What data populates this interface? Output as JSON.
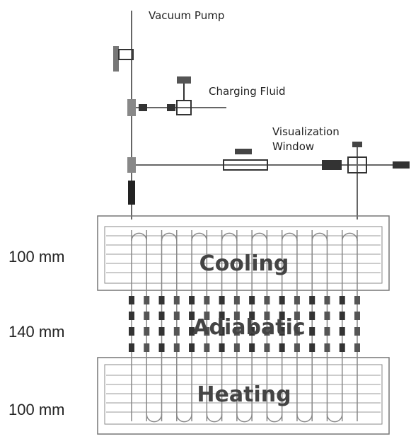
{
  "labels": {
    "vacuum_pump": "Vacuum Pump",
    "charging_fluid": "Charging Fluid",
    "visualization_window": [
      "Visualization",
      "Window"
    ]
  },
  "dimensions": [
    "100 mm",
    "140 mm",
    "100 mm"
  ],
  "sections": [
    "Cooling",
    "Adiabatic",
    "Heating"
  ]
}
